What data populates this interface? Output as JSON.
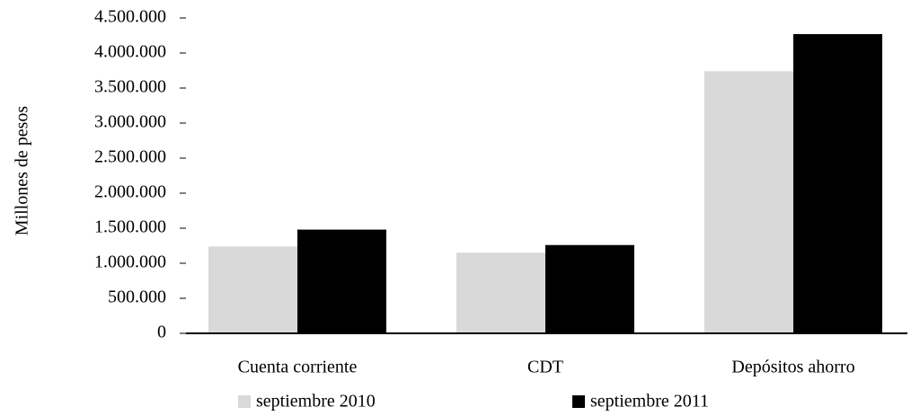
{
  "chart_data": {
    "type": "bar",
    "y_label": "Millones de pesos",
    "categories": [
      "Cuenta corriente",
      "CDT",
      "Depósitos ahorro"
    ],
    "series": [
      {
        "name": "septiembre 2010",
        "color": "#d9d9d9",
        "values": [
          1240000,
          1150000,
          3740000
        ]
      },
      {
        "name": "septiembre 2011",
        "color": "#000000",
        "values": [
          1480000,
          1260000,
          4270000
        ]
      }
    ],
    "ylim": [
      0,
      4500000
    ],
    "yticks": [
      0,
      {
        "value": 500000,
        "label": "500.000"
      },
      {
        "value": 1000000,
        "label": "1.000.000"
      },
      {
        "value": 1500000,
        "label": "1.500.000"
      },
      {
        "value": 2000000,
        "label": "2.000.000"
      },
      {
        "value": 2500000,
        "label": "2.500.000"
      },
      {
        "value": 3000000,
        "label": "3.000.000"
      },
      {
        "value": 3500000,
        "label": "3.500.000"
      },
      {
        "value": 4000000,
        "label": "4.000.000"
      },
      {
        "value": 4500000,
        "label": "4.500.000"
      }
    ],
    "legend_position": "bottom"
  }
}
